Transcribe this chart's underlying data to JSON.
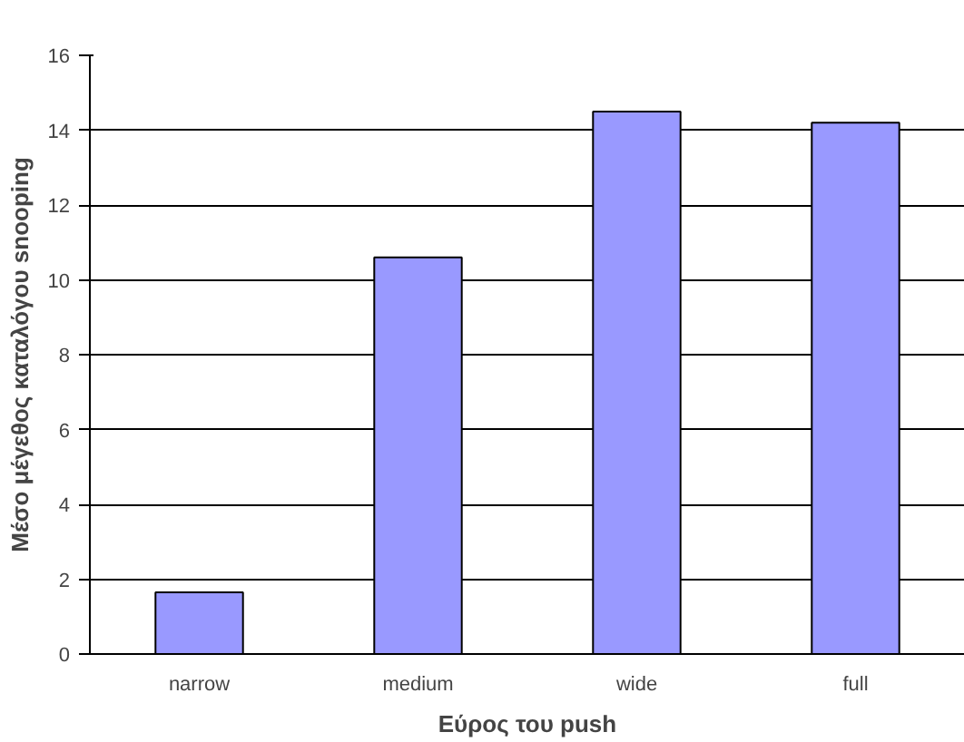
{
  "chart_data": {
    "type": "bar",
    "xlabel": "Εύρος του push",
    "ylabel": "Μέσο μέγεθος καταλόγου snooping",
    "categories": [
      "narrow",
      "medium",
      "wide",
      "full"
    ],
    "series": [
      {
        "color": "#9999ff",
        "values": [
          1.65,
          10.6,
          14.5,
          14.2
        ]
      }
    ],
    "ylim": [
      0,
      16
    ],
    "yticks": [
      0,
      2,
      4,
      6,
      8,
      10,
      12,
      14,
      16
    ],
    "grid": "y"
  }
}
